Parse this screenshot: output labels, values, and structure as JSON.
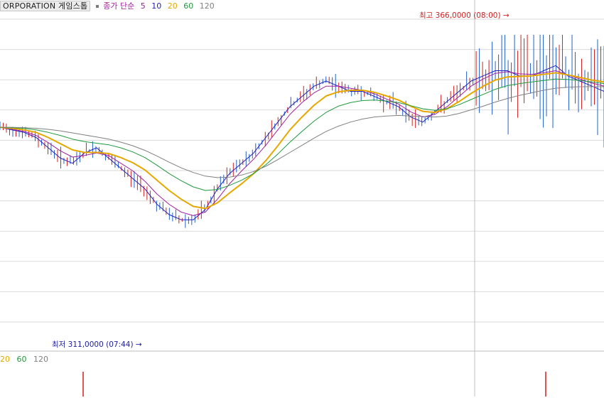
{
  "header": {
    "symbol": "ORPORATION 게임스톱",
    "indicator_label": "종가 단순",
    "ma_periods": [
      "5",
      "10",
      "20",
      "60",
      "120"
    ]
  },
  "volume_header": {
    "ma_periods": [
      "20",
      "60",
      "120"
    ]
  },
  "colors": {
    "ma5": "#2020c0",
    "ma10": "#a020a0",
    "ma20": "#e6a800",
    "ma60": "#1e9a3c",
    "ma120": "#808080",
    "up": "#d42020",
    "down": "#2060d0",
    "annotation_high": "#d42020",
    "annotation_low": "#2020a0"
  },
  "annotations": {
    "high_label": "최고 366,0000 (08:00)",
    "low_label": "최저 311,0000 (07:44)"
  },
  "chart_data": {
    "type": "line",
    "x_axis": "time",
    "price_high": 366.0,
    "price_low": 311.0,
    "high_time": "08:00",
    "low_time": "07:44",
    "ylim": [
      305,
      370
    ],
    "grid": true,
    "series": [
      {
        "name": "5",
        "values": [
          348,
          347.5,
          347,
          346,
          344,
          342,
          341,
          343,
          344,
          342,
          340,
          338,
          336,
          333,
          331,
          330,
          330,
          332,
          336,
          339,
          341,
          343,
          346,
          349,
          352,
          354,
          356,
          357,
          356,
          355,
          355,
          354,
          353,
          352,
          350,
          349,
          351,
          353,
          355,
          357,
          358,
          359,
          359,
          358,
          358,
          359,
          360,
          358,
          357,
          356,
          355
        ]
      },
      {
        "name": "10",
        "values": [
          348,
          347.6,
          347.2,
          346.4,
          345,
          343.4,
          342.2,
          342.5,
          343,
          342.5,
          341,
          339.5,
          337.5,
          335,
          333,
          331.5,
          330.8,
          331.5,
          334,
          337,
          339.5,
          341.8,
          344.5,
          347.5,
          350.5,
          352.8,
          354.7,
          356,
          356,
          355.6,
          355.2,
          354.5,
          353.5,
          352.5,
          351,
          350,
          350.5,
          352,
          354,
          356,
          357.4,
          358.5,
          358.8,
          358.4,
          358.3,
          358.6,
          359,
          358.2,
          357.4,
          356.6,
          356
        ]
      },
      {
        "name": "20",
        "values": [
          348,
          347.8,
          347.5,
          347,
          346,
          344.8,
          343.6,
          343.1,
          343.1,
          342.9,
          342.1,
          341.1,
          339.7,
          337.7,
          335.7,
          334,
          332.6,
          332.2,
          333.3,
          335.2,
          337,
          339,
          341.5,
          344.4,
          347.5,
          350,
          352.3,
          354.1,
          354.9,
          355.2,
          355.2,
          354.8,
          354.1,
          353.3,
          352.1,
          351.1,
          350.9,
          351.6,
          353,
          354.6,
          356,
          357.2,
          357.8,
          357.9,
          358,
          358.3,
          358.6,
          358.2,
          357.7,
          357.2,
          356.8
        ]
      },
      {
        "name": "60",
        "values": [
          348,
          347.9,
          347.8,
          347.5,
          347,
          346.4,
          345.7,
          345.2,
          344.9,
          344.6,
          344,
          343.2,
          342.1,
          340.6,
          339,
          337.6,
          336.4,
          335.7,
          335.9,
          336.7,
          337.7,
          339,
          340.7,
          342.8,
          345.1,
          347.2,
          349.2,
          350.9,
          352.1,
          352.8,
          353.2,
          353.3,
          353.1,
          352.8,
          352.2,
          351.6,
          351.3,
          351.6,
          352.4,
          353.4,
          354.4,
          355.4,
          356.1,
          356.5,
          356.8,
          357.1,
          357.4,
          357.3,
          357.1,
          356.8,
          356.5
        ]
      },
      {
        "name": "120",
        "values": [
          348,
          348,
          347.9,
          347.8,
          347.6,
          347.3,
          346.9,
          346.5,
          346.1,
          345.7,
          345.1,
          344.4,
          343.5,
          342.4,
          341.2,
          340.1,
          339.2,
          338.5,
          338.2,
          338.3,
          338.7,
          339.4,
          340.4,
          341.7,
          343.1,
          344.5,
          345.9,
          347.2,
          348.2,
          349,
          349.6,
          350,
          350.2,
          350.3,
          350.2,
          350.1,
          350,
          350.2,
          350.7,
          351.4,
          352.1,
          352.9,
          353.6,
          354.2,
          354.7,
          355.2,
          355.6,
          355.8,
          355.9,
          355.9,
          355.9
        ]
      }
    ]
  }
}
